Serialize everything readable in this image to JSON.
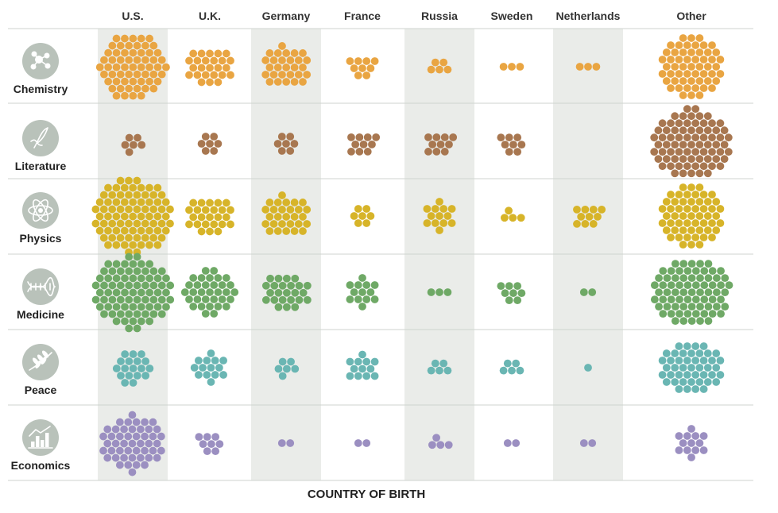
{
  "chart_data": {
    "type": "bubble-grid",
    "title": "",
    "xlabel": "COUNTRY OF BIRTH",
    "ylabel": "",
    "columns": [
      "U.S.",
      "U.K.",
      "Germany",
      "France",
      "Russia",
      "Sweden",
      "Netherlands",
      "Other"
    ],
    "rows": [
      {
        "label": "Chemistry",
        "icon": "molecule-icon",
        "color": "#e9a542"
      },
      {
        "label": "Literature",
        "icon": "quill-letter-icon",
        "color": "#a87750"
      },
      {
        "label": "Physics",
        "icon": "atom-icon",
        "color": "#d7b429"
      },
      {
        "label": "Medicine",
        "icon": "dna-icon",
        "color": "#6fa966"
      },
      {
        "label": "Peace",
        "icon": "olive-branch-icon",
        "color": "#6ab6b3"
      },
      {
        "label": "Economics",
        "icon": "bar-graph-icon",
        "color": "#9b8fc1"
      }
    ],
    "values": [
      [
        60,
        25,
        28,
        9,
        5,
        3,
        3,
        55
      ],
      [
        6,
        7,
        7,
        10,
        10,
        8,
        0,
        75
      ],
      [
        82,
        25,
        28,
        7,
        13,
        4,
        10,
        55
      ],
      [
        78,
        33,
        24,
        13,
        3,
        8,
        2,
        72
      ],
      [
        18,
        14,
        6,
        12,
        5,
        5,
        1,
        45
      ],
      [
        48,
        8,
        2,
        2,
        4,
        2,
        2,
        13
      ]
    ]
  }
}
